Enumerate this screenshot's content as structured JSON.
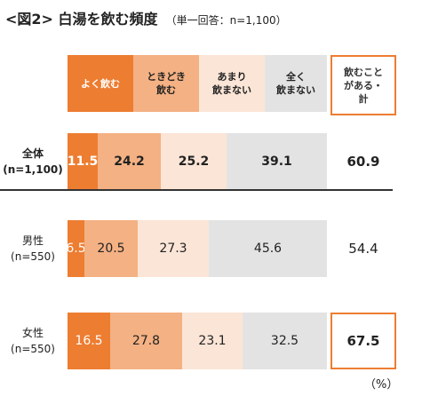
{
  "title": {
    "main": "<図2> 白湯を飲む頻度",
    "sub": "（単一回答：n=1,100）"
  },
  "chart_data": {
    "type": "bar",
    "orientation": "horizontal-stacked-100",
    "unit_label": "（%）",
    "legend": [
      {
        "label": "よく飲む",
        "color": "#ED7D31",
        "text_color": "#ffffff"
      },
      {
        "label": "ときどき\n飲む",
        "color": "#F4B183",
        "text_color": "#222222"
      },
      {
        "label": "あまり\n飲まない",
        "color": "#FBE5D6",
        "text_color": "#222222"
      },
      {
        "label": "全く\n飲まない",
        "color": "#E3E3E3",
        "text_color": "#222222"
      }
    ],
    "total_header": "飲むこと\nがある・\n計",
    "rows": [
      {
        "label": "全体\n(n=1,100)",
        "values": [
          11.5,
          24.2,
          25.2,
          39.1
        ],
        "total": 60.9,
        "bold": true,
        "total_boxed": false
      },
      {
        "label": "男性\n(n=550)",
        "values": [
          6.5,
          20.5,
          27.3,
          45.6
        ],
        "total": 54.4,
        "bold": false,
        "total_boxed": false
      },
      {
        "label": "女性\n(n=550)",
        "values": [
          16.5,
          27.8,
          23.1,
          32.5
        ],
        "total": 67.5,
        "bold": false,
        "total_boxed": true
      }
    ]
  }
}
